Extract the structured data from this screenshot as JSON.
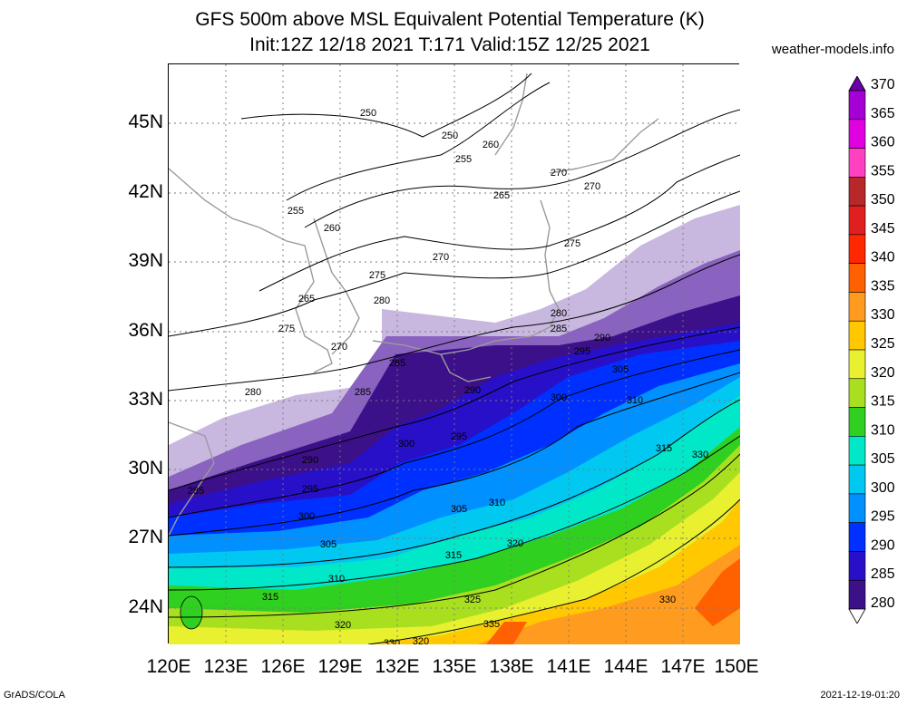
{
  "title_line1": "GFS 500m above MSL Equivalent Potential Temperature (K)",
  "title_line2": "Init:12Z 12/18 2021 T:171 Valid:15Z 12/25 2021",
  "site": "weather-models.info",
  "footer_left": "GrADS/COLA",
  "footer_right": "2021-12-19-01:20",
  "lat_labels": [
    "45N",
    "42N",
    "39N",
    "36N",
    "33N",
    "30N",
    "27N",
    "24N"
  ],
  "lon_labels": [
    "120E",
    "123E",
    "126E",
    "129E",
    "132E",
    "135E",
    "138E",
    "141E",
    "144E",
    "147E",
    "150E"
  ],
  "colorbar": {
    "levels": [
      "370",
      "365",
      "360",
      "355",
      "350",
      "345",
      "340",
      "335",
      "330",
      "325",
      "320",
      "315",
      "310",
      "305",
      "300",
      "295",
      "290",
      "285",
      "280"
    ],
    "colors": [
      "#6a00a8",
      "#a400d6",
      "#e000e0",
      "#ff40c0",
      "#b82828",
      "#e02020",
      "#ff2800",
      "#ff6000",
      "#ff9c20",
      "#ffc800",
      "#e8f030",
      "#a8e020",
      "#30d020",
      "#00e8c8",
      "#00c8f0",
      "#0090ff",
      "#0030ff",
      "#2810c8",
      "#3c1088",
      "#8a62c0",
      "#c8b8e0"
    ]
  },
  "contour_labels": [
    "250",
    "250",
    "255",
    "255",
    "260",
    "260",
    "265",
    "265",
    "270",
    "270",
    "270",
    "270",
    "275",
    "275",
    "275",
    "280",
    "280",
    "280",
    "285",
    "285",
    "285",
    "285",
    "290",
    "290",
    "290",
    "295",
    "295",
    "295",
    "300",
    "300",
    "300",
    "305",
    "305",
    "305",
    "310",
    "310",
    "310",
    "315",
    "315",
    "315",
    "320",
    "320",
    "320",
    "325",
    "330",
    "330",
    "330",
    "335"
  ]
}
